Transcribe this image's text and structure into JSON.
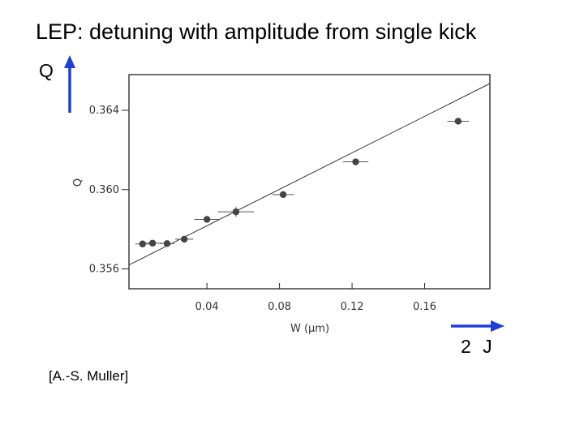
{
  "slide": {
    "title": "LEP: detuning with amplitude from single kick",
    "q_arrow_label": "Q",
    "j_arrow_label": "2 J",
    "credit": "[A.-S. Muller]"
  },
  "colors": {
    "arrow": "#1f3fd6",
    "marker": "#444444",
    "axis": "#222222"
  },
  "chart_data": {
    "type": "scatter",
    "xlabel": "W (μm)",
    "ylabel": "Q",
    "xlim": [
      -0.003,
      0.196
    ],
    "ylim": [
      0.355,
      0.3658
    ],
    "xticks": [
      0.04,
      0.08,
      0.12,
      0.16
    ],
    "xtick_labels": [
      "0.04",
      "0.08",
      "0.12",
      "0.16"
    ],
    "yticks": [
      0.356,
      0.36,
      0.364
    ],
    "ytick_labels": [
      "0.356",
      "0.360",
      "0.364"
    ],
    "grid": false,
    "points": [
      {
        "x": 0.0045,
        "y": 0.35726,
        "xerr": 0.004
      },
      {
        "x": 0.01,
        "y": 0.3573,
        "xerr": 0.005
      },
      {
        "x": 0.018,
        "y": 0.35728,
        "xerr": 0.004
      },
      {
        "x": 0.0275,
        "y": 0.3575,
        "xerr": 0.005
      },
      {
        "x": 0.04,
        "y": 0.3585,
        "xerr": 0.007
      },
      {
        "x": 0.056,
        "y": 0.35888,
        "xerr": 0.01,
        "yerr": 0.00025
      },
      {
        "x": 0.082,
        "y": 0.35975,
        "xerr": 0.006
      },
      {
        "x": 0.122,
        "y": 0.3614,
        "xerr": 0.007
      },
      {
        "x": 0.1785,
        "y": 0.36345,
        "xerr": 0.006
      }
    ],
    "fit_line": {
      "x": [
        -0.003,
        0.196
      ],
      "y": [
        0.3562,
        0.36535
      ]
    }
  }
}
